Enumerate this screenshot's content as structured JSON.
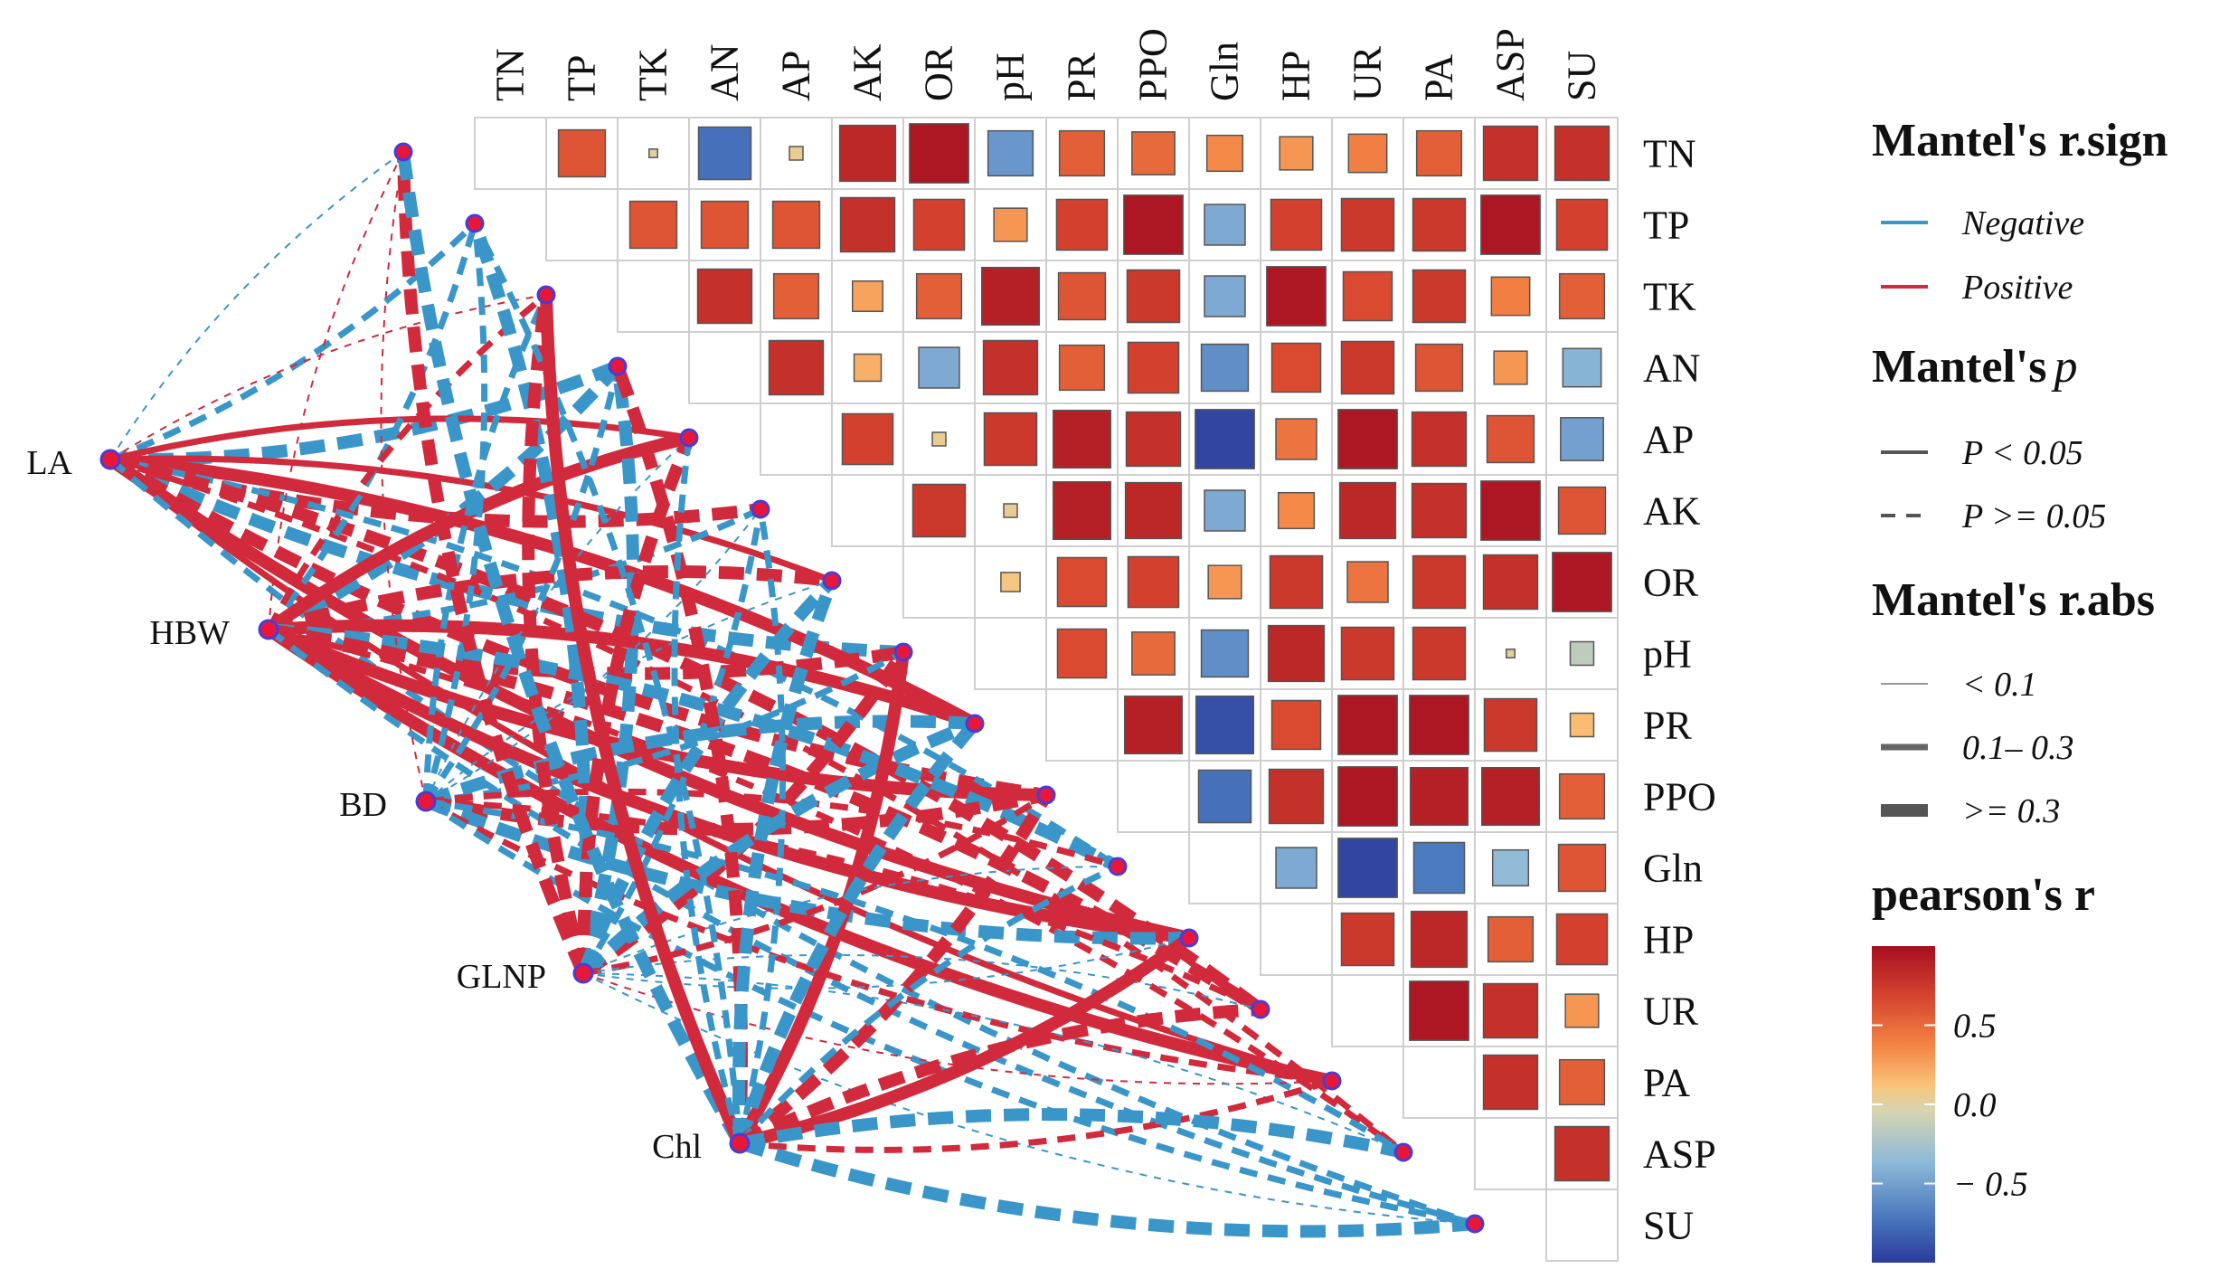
{
  "chart_data": {
    "type": "mantel-correlogram",
    "variables": [
      "TN",
      "TP",
      "TK",
      "AN",
      "AP",
      "AK",
      "OR",
      "pH",
      "PR",
      "PPO",
      "Gln",
      "HP",
      "UR",
      "PA",
      "ASP",
      "SU"
    ],
    "pearson_r": [
      [
        0.6,
        0.0,
        -0.75,
        0.05,
        0.85,
        0.95,
        -0.55,
        0.55,
        0.5,
        0.35,
        0.3,
        0.4,
        0.55,
        0.8,
        0.8
      ],
      [
        0.6,
        0.6,
        0.6,
        0.8,
        0.7,
        0.3,
        0.7,
        0.95,
        -0.45,
        0.7,
        0.75,
        0.75,
        0.95,
        0.7
      ],
      [
        0.8,
        0.55,
        0.25,
        0.55,
        0.9,
        0.6,
        0.75,
        -0.45,
        0.95,
        0.65,
        0.75,
        0.4,
        0.55
      ],
      [
        0.8,
        0.2,
        -0.45,
        0.8,
        0.55,
        0.7,
        -0.6,
        0.65,
        0.75,
        0.6,
        0.3,
        -0.4
      ],
      [
        0.7,
        0.05,
        0.75,
        0.9,
        0.8,
        -0.95,
        0.45,
        0.95,
        0.8,
        0.6,
        -0.5
      ],
      [
        0.75,
        0.05,
        0.9,
        0.85,
        -0.45,
        0.35,
        0.85,
        0.8,
        0.95,
        0.6
      ],
      [
        0.1,
        0.65,
        0.7,
        0.3,
        0.75,
        0.45,
        0.75,
        0.8,
        0.95
      ],
      [
        0.65,
        0.5,
        -0.6,
        0.85,
        0.75,
        0.75,
        0.0,
        -0.15
      ],
      [
        0.9,
        -0.9,
        0.65,
        0.95,
        0.95,
        0.75,
        0.15
      ],
      [
        -0.75,
        0.8,
        0.95,
        0.9,
        0.9,
        0.55
      ],
      [
        -0.45,
        -0.95,
        -0.7,
        -0.35,
        0.6
      ],
      [
        0.75,
        0.85,
        0.55,
        0.7
      ],
      [
        0.95,
        0.8,
        0.3
      ],
      [
        0.8,
        0.55
      ],
      [
        0.8
      ]
    ],
    "pearson_r_note": "upper triangle, row i lists r for columns i+1..n",
    "mantel_nodes": [
      "LA",
      "HBW",
      "BD",
      "GLNP",
      "Chl"
    ],
    "mantel_links": [
      {
        "from": "LA",
        "to": "TN",
        "sign": "neg",
        "p": "ge",
        "abs": "small"
      },
      {
        "from": "LA",
        "to": "TP",
        "sign": "neg",
        "p": "ge",
        "abs": "mid"
      },
      {
        "from": "LA",
        "to": "TK",
        "sign": "pos",
        "p": "ge",
        "abs": "small"
      },
      {
        "from": "LA",
        "to": "AN",
        "sign": "neg",
        "p": "ge",
        "abs": "large"
      },
      {
        "from": "LA",
        "to": "AP",
        "sign": "pos",
        "p": "lt",
        "abs": "mid"
      },
      {
        "from": "LA",
        "to": "AK",
        "sign": "pos",
        "p": "ge",
        "abs": "large"
      },
      {
        "from": "LA",
        "to": "OR",
        "sign": "pos",
        "p": "lt",
        "abs": "mid"
      },
      {
        "from": "LA",
        "to": "pH",
        "sign": "neg",
        "p": "ge",
        "abs": "large"
      },
      {
        "from": "LA",
        "to": "PR",
        "sign": "pos",
        "p": "lt",
        "abs": "large"
      },
      {
        "from": "LA",
        "to": "PPO",
        "sign": "pos",
        "p": "ge",
        "abs": "large"
      },
      {
        "from": "LA",
        "to": "Gln",
        "sign": "neg",
        "p": "ge",
        "abs": "mid"
      },
      {
        "from": "LA",
        "to": "HP",
        "sign": "pos",
        "p": "lt",
        "abs": "large"
      },
      {
        "from": "LA",
        "to": "UR",
        "sign": "pos",
        "p": "ge",
        "abs": "large"
      },
      {
        "from": "LA",
        "to": "PA",
        "sign": "pos",
        "p": "lt",
        "abs": "mid"
      },
      {
        "from": "LA",
        "to": "ASP",
        "sign": "pos",
        "p": "ge",
        "abs": "mid"
      },
      {
        "from": "LA",
        "to": "SU",
        "sign": "neg",
        "p": "ge",
        "abs": "mid"
      },
      {
        "from": "HBW",
        "to": "TN",
        "sign": "pos",
        "p": "ge",
        "abs": "small"
      },
      {
        "from": "HBW",
        "to": "TP",
        "sign": "neg",
        "p": "ge",
        "abs": "mid"
      },
      {
        "from": "HBW",
        "to": "TK",
        "sign": "pos",
        "p": "ge",
        "abs": "mid"
      },
      {
        "from": "HBW",
        "to": "AN",
        "sign": "neg",
        "p": "ge",
        "abs": "large"
      },
      {
        "from": "HBW",
        "to": "AP",
        "sign": "pos",
        "p": "lt",
        "abs": "large"
      },
      {
        "from": "HBW",
        "to": "AK",
        "sign": "neg",
        "p": "ge",
        "abs": "mid"
      },
      {
        "from": "HBW",
        "to": "OR",
        "sign": "pos",
        "p": "ge",
        "abs": "large"
      },
      {
        "from": "HBW",
        "to": "pH",
        "sign": "pos",
        "p": "ge",
        "abs": "large"
      },
      {
        "from": "HBW",
        "to": "PR",
        "sign": "pos",
        "p": "lt",
        "abs": "large"
      },
      {
        "from": "HBW",
        "to": "PPO",
        "sign": "pos",
        "p": "lt",
        "abs": "large"
      },
      {
        "from": "HBW",
        "to": "Gln",
        "sign": "neg",
        "p": "ge",
        "abs": "large"
      },
      {
        "from": "HBW",
        "to": "HP",
        "sign": "pos",
        "p": "lt",
        "abs": "large"
      },
      {
        "from": "HBW",
        "to": "UR",
        "sign": "pos",
        "p": "ge",
        "abs": "large"
      },
      {
        "from": "HBW",
        "to": "PA",
        "sign": "pos",
        "p": "lt",
        "abs": "large"
      },
      {
        "from": "HBW",
        "to": "ASP",
        "sign": "pos",
        "p": "ge",
        "abs": "mid"
      },
      {
        "from": "HBW",
        "to": "SU",
        "sign": "neg",
        "p": "ge",
        "abs": "mid"
      },
      {
        "from": "BD",
        "to": "TN",
        "sign": "pos",
        "p": "ge",
        "abs": "small"
      },
      {
        "from": "BD",
        "to": "TP",
        "sign": "neg",
        "p": "ge",
        "abs": "mid"
      },
      {
        "from": "BD",
        "to": "TK",
        "sign": "neg",
        "p": "ge",
        "abs": "mid"
      },
      {
        "from": "BD",
        "to": "AN",
        "sign": "neg",
        "p": "ge",
        "abs": "mid"
      },
      {
        "from": "BD",
        "to": "AP",
        "sign": "neg",
        "p": "ge",
        "abs": "small"
      },
      {
        "from": "BD",
        "to": "AK",
        "sign": "neg",
        "p": "ge",
        "abs": "small"
      },
      {
        "from": "BD",
        "to": "OR",
        "sign": "neg",
        "p": "ge",
        "abs": "small"
      },
      {
        "from": "BD",
        "to": "pH",
        "sign": "neg",
        "p": "ge",
        "abs": "mid"
      },
      {
        "from": "BD",
        "to": "PR",
        "sign": "neg",
        "p": "ge",
        "abs": "large"
      },
      {
        "from": "BD",
        "to": "PPO",
        "sign": "pos",
        "p": "ge",
        "abs": "large"
      },
      {
        "from": "BD",
        "to": "Gln",
        "sign": "pos",
        "p": "ge",
        "abs": "mid"
      },
      {
        "from": "BD",
        "to": "HP",
        "sign": "neg",
        "p": "ge",
        "abs": "large"
      },
      {
        "from": "BD",
        "to": "UR",
        "sign": "pos",
        "p": "ge",
        "abs": "mid"
      },
      {
        "from": "BD",
        "to": "PA",
        "sign": "pos",
        "p": "ge",
        "abs": "mid"
      },
      {
        "from": "BD",
        "to": "ASP",
        "sign": "neg",
        "p": "ge",
        "abs": "mid"
      },
      {
        "from": "BD",
        "to": "SU",
        "sign": "neg",
        "p": "ge",
        "abs": "mid"
      },
      {
        "from": "GLNP",
        "to": "TN",
        "sign": "pos",
        "p": "ge",
        "abs": "large"
      },
      {
        "from": "GLNP",
        "to": "TP",
        "sign": "neg",
        "p": "ge",
        "abs": "large"
      },
      {
        "from": "GLNP",
        "to": "TK",
        "sign": "pos",
        "p": "ge",
        "abs": "large"
      },
      {
        "from": "GLNP",
        "to": "AN",
        "sign": "neg",
        "p": "ge",
        "abs": "large"
      },
      {
        "from": "GLNP",
        "to": "AP",
        "sign": "pos",
        "p": "ge",
        "abs": "large"
      },
      {
        "from": "GLNP",
        "to": "AK",
        "sign": "neg",
        "p": "ge",
        "abs": "mid"
      },
      {
        "from": "GLNP",
        "to": "OR",
        "sign": "neg",
        "p": "ge",
        "abs": "large"
      },
      {
        "from": "GLNP",
        "to": "pH",
        "sign": "pos",
        "p": "ge",
        "abs": "large"
      },
      {
        "from": "GLNP",
        "to": "PR",
        "sign": "neg",
        "p": "ge",
        "abs": "large"
      },
      {
        "from": "GLNP",
        "to": "PPO",
        "sign": "pos",
        "p": "ge",
        "abs": "mid"
      },
      {
        "from": "GLNP",
        "to": "Gln",
        "sign": "neg",
        "p": "ge",
        "abs": "small"
      },
      {
        "from": "GLNP",
        "to": "HP",
        "sign": "neg",
        "p": "ge",
        "abs": "small"
      },
      {
        "from": "GLNP",
        "to": "UR",
        "sign": "neg",
        "p": "ge",
        "abs": "small"
      },
      {
        "from": "GLNP",
        "to": "PA",
        "sign": "pos",
        "p": "ge",
        "abs": "small"
      },
      {
        "from": "GLNP",
        "to": "ASP",
        "sign": "neg",
        "p": "ge",
        "abs": "small"
      },
      {
        "from": "GLNP",
        "to": "SU",
        "sign": "neg",
        "p": "ge",
        "abs": "small"
      },
      {
        "from": "Chl",
        "to": "TN",
        "sign": "neg",
        "p": "ge",
        "abs": "large"
      },
      {
        "from": "Chl",
        "to": "TP",
        "sign": "neg",
        "p": "ge",
        "abs": "mid"
      },
      {
        "from": "Chl",
        "to": "TK",
        "sign": "pos",
        "p": "lt",
        "abs": "large"
      },
      {
        "from": "Chl",
        "to": "AN",
        "sign": "pos",
        "p": "ge",
        "abs": "large"
      },
      {
        "from": "Chl",
        "to": "AP",
        "sign": "neg",
        "p": "ge",
        "abs": "mid"
      },
      {
        "from": "Chl",
        "to": "AK",
        "sign": "neg",
        "p": "ge",
        "abs": "mid"
      },
      {
        "from": "Chl",
        "to": "OR",
        "sign": "neg",
        "p": "ge",
        "abs": "large"
      },
      {
        "from": "Chl",
        "to": "pH",
        "sign": "pos",
        "p": "lt",
        "abs": "large"
      },
      {
        "from": "Chl",
        "to": "PR",
        "sign": "neg",
        "p": "ge",
        "abs": "large"
      },
      {
        "from": "Chl",
        "to": "PPO",
        "sign": "pos",
        "p": "ge",
        "abs": "large"
      },
      {
        "from": "Chl",
        "to": "Gln",
        "sign": "neg",
        "p": "ge",
        "abs": "mid"
      },
      {
        "from": "Chl",
        "to": "HP",
        "sign": "pos",
        "p": "lt",
        "abs": "large"
      },
      {
        "from": "Chl",
        "to": "UR",
        "sign": "pos",
        "p": "ge",
        "abs": "large"
      },
      {
        "from": "Chl",
        "to": "PA",
        "sign": "pos",
        "p": "ge",
        "abs": "mid"
      },
      {
        "from": "Chl",
        "to": "ASP",
        "sign": "neg",
        "p": "ge",
        "abs": "large"
      },
      {
        "from": "Chl",
        "to": "SU",
        "sign": "neg",
        "p": "ge",
        "abs": "large"
      }
    ],
    "legend": {
      "sign_title": "Mantel's r.sign",
      "sign_items": [
        {
          "label": "Negative",
          "color": "#3a96c9"
        },
        {
          "label": "Positive",
          "color": "#d12a3c"
        }
      ],
      "p_title_main": "Mantel's",
      "p_title_symbol": "p",
      "p_items": [
        {
          "label": "P < 0.05",
          "style": "solid"
        },
        {
          "label": "P >= 0.05",
          "style": "dashed"
        }
      ],
      "abs_title": "Mantel's r.abs",
      "abs_items": [
        {
          "label": "< 0.1",
          "level": "small"
        },
        {
          "label": "0.1– 0.3",
          "level": "mid"
        },
        {
          "label": ">= 0.3",
          "level": "large"
        }
      ],
      "colorbar_title": "pearson's r",
      "colorbar_range": [
        -1,
        1
      ],
      "colorbar_ticks": [
        {
          "value": 0.5,
          "label": "0.5"
        },
        {
          "value": 0.0,
          "label": "0.0"
        },
        {
          "value": -0.5,
          "label": "− 0.5"
        }
      ]
    },
    "colors": {
      "negative": "#3a96c9",
      "positive": "#d12a3c",
      "node_fill": "#e8173a",
      "node_stroke": "#4b3bd6",
      "colormap": [
        "#2b3a9b",
        "#4c7bc0",
        "#8fbad8",
        "#d7d5b0",
        "#f9c47a",
        "#f58746",
        "#d6442f",
        "#a50f21"
      ]
    }
  }
}
